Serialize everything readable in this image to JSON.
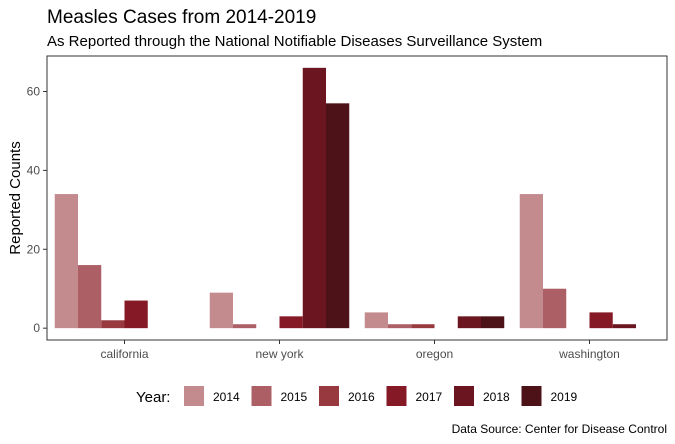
{
  "chart_data": {
    "type": "bar",
    "title": "Measles Cases from 2014-2019",
    "subtitle": "As Reported through the National Notifiable Diseases Surveillance System",
    "ylabel": "Reported Counts",
    "xlabel": "",
    "categories": [
      "california",
      "new york",
      "oregon",
      "washington"
    ],
    "ylim": [
      -3,
      69
    ],
    "yticks": [
      0,
      20,
      40,
      60
    ],
    "grid": false,
    "legend": {
      "title": "Year:",
      "placement": "bottom"
    },
    "series": [
      {
        "name": "2014",
        "color": "#c48b8e",
        "values": [
          34,
          9,
          4,
          34
        ]
      },
      {
        "name": "2015",
        "color": "#ad5f66",
        "values": [
          16,
          1,
          1,
          10
        ]
      },
      {
        "name": "2016",
        "color": "#98383f",
        "values": [
          2,
          0,
          1,
          0
        ]
      },
      {
        "name": "2017",
        "color": "#851a26",
        "values": [
          7,
          3,
          0,
          4
        ]
      },
      {
        "name": "2018",
        "color": "#6b1520",
        "values": [
          0,
          66,
          3,
          1
        ]
      },
      {
        "name": "2019",
        "color": "#4d1118",
        "values": [
          0,
          57,
          3,
          0
        ]
      }
    ],
    "caption": "Data Source: Center for Disease Control"
  }
}
